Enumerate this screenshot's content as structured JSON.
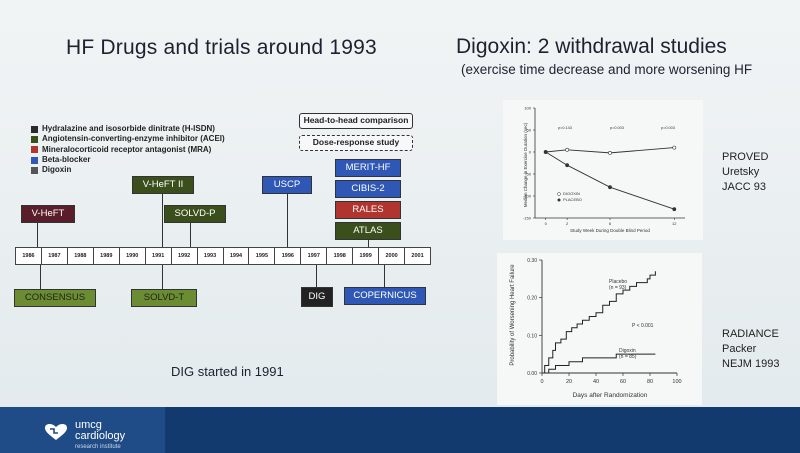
{
  "slide": {
    "title_left": "HF Drugs and trials around 1993",
    "title_right": "Digoxin: 2 withdrawal studies",
    "subtitle_right": "(exercise time decrease and more worsening HF",
    "dig_note": "DIG started in 1991"
  },
  "legend": [
    {
      "label": "Hydralazine and isosorbide dinitrate (H-ISDN)",
      "color": "#2b2b2b"
    },
    {
      "label": "Angiotensin-converting-enzyme inhibitor (ACEI)",
      "color": "#3a4f1c"
    },
    {
      "label": "Mineralocorticoid receptor antagonist (MRA)",
      "color": "#b0352e"
    },
    {
      "label": "Beta-blocker",
      "color": "#2f57b5"
    },
    {
      "label": "Digoxin",
      "color": "#555555"
    }
  ],
  "top_boxes": {
    "head_to_head": "Head-to-head comparison",
    "dose_response": "Dose-response study"
  },
  "timeline": {
    "years": [
      "1986",
      "1987",
      "1988",
      "1989",
      "1990",
      "1991",
      "1992",
      "1993",
      "1994",
      "1995",
      "1996",
      "1997",
      "1998",
      "1999",
      "2000",
      "2001"
    ]
  },
  "trials": {
    "vheft": "V-HeFT",
    "vheft2": "V-HeFT II",
    "solvdp": "SOLVD-P",
    "uscp": "USCP",
    "merit": "MERIT-HF",
    "cibis2": "CIBIS-2",
    "rales": "RALES",
    "atlas": "ATLAS",
    "consensus": "CONSENSUS",
    "solvdt": "SOLVD-T",
    "dig": "DIG",
    "copernicus": "COPERNICUS"
  },
  "proved": {
    "label_line1": "PROVED",
    "label_line2": "Uretsky",
    "label_line3": "JACC 93",
    "xlabel": "Study Week During Double Blind Period",
    "ylabel": "Median Change in Exercise Duration (sec)",
    "x_ticks": [
      "0",
      "2",
      "6",
      "12"
    ],
    "y_ticks": [
      "100",
      "50",
      "0",
      "-50",
      "-100",
      "-150"
    ],
    "legend_digoxin": "DIGOXIN",
    "legend_placebo": "PLACEBO",
    "p_labels": [
      "p=0.143",
      "p=0.003",
      "p=0.003"
    ]
  },
  "radiance": {
    "label_line1": "RADIANCE",
    "label_line2": "Packer",
    "label_line3": "NEJM 1993",
    "xlabel": "Days after Randomization",
    "ylabel": "Probability of Worsening Heart Failure",
    "x_ticks": [
      "0",
      "20",
      "40",
      "60",
      "80",
      "100"
    ],
    "y_ticks": [
      "0.30",
      "0.20",
      "0.10",
      "0.00"
    ],
    "placebo_label": "Placebo",
    "placebo_n": "(n = 93)",
    "digoxin_label": "Digoxin",
    "digoxin_n": "(n = 85)",
    "p_value": "P < 0.001"
  },
  "footer": {
    "brand": "umcg",
    "sub": "cardiology",
    "small": "research institute"
  },
  "chart_data": [
    {
      "type": "line",
      "title": "",
      "xlabel": "Study Week During Double Blind Period",
      "ylabel": "Median Change in Exercise Duration (sec)",
      "x": [
        0,
        2,
        6,
        12
      ],
      "ylim": [
        -150,
        100
      ],
      "series": [
        {
          "name": "DIGOXIN",
          "values": [
            0,
            5,
            -2,
            10
          ]
        },
        {
          "name": "PLACEBO",
          "values": [
            0,
            -30,
            -80,
            -130
          ]
        }
      ]
    },
    {
      "type": "line",
      "title": "",
      "xlabel": "Days after Randomization",
      "ylabel": "Probability of Worsening Heart Failure",
      "ylim": [
        0,
        0.3
      ],
      "xlim": [
        0,
        100
      ],
      "series": [
        {
          "name": "Placebo",
          "x": [
            0,
            2,
            5,
            8,
            10,
            14,
            18,
            22,
            26,
            30,
            35,
            40,
            45,
            50,
            55,
            60,
            65,
            70,
            75,
            78,
            80,
            84
          ],
          "values": [
            0,
            0.02,
            0.04,
            0.06,
            0.08,
            0.09,
            0.11,
            0.12,
            0.13,
            0.14,
            0.15,
            0.16,
            0.18,
            0.19,
            0.21,
            0.22,
            0.23,
            0.24,
            0.24,
            0.25,
            0.26,
            0.27
          ]
        },
        {
          "name": "Digoxin",
          "x": [
            0,
            5,
            10,
            20,
            30,
            40,
            55,
            60,
            70,
            84
          ],
          "values": [
            0,
            0.01,
            0.02,
            0.03,
            0.04,
            0.04,
            0.05,
            0.05,
            0.05,
            0.05
          ]
        }
      ]
    }
  ]
}
